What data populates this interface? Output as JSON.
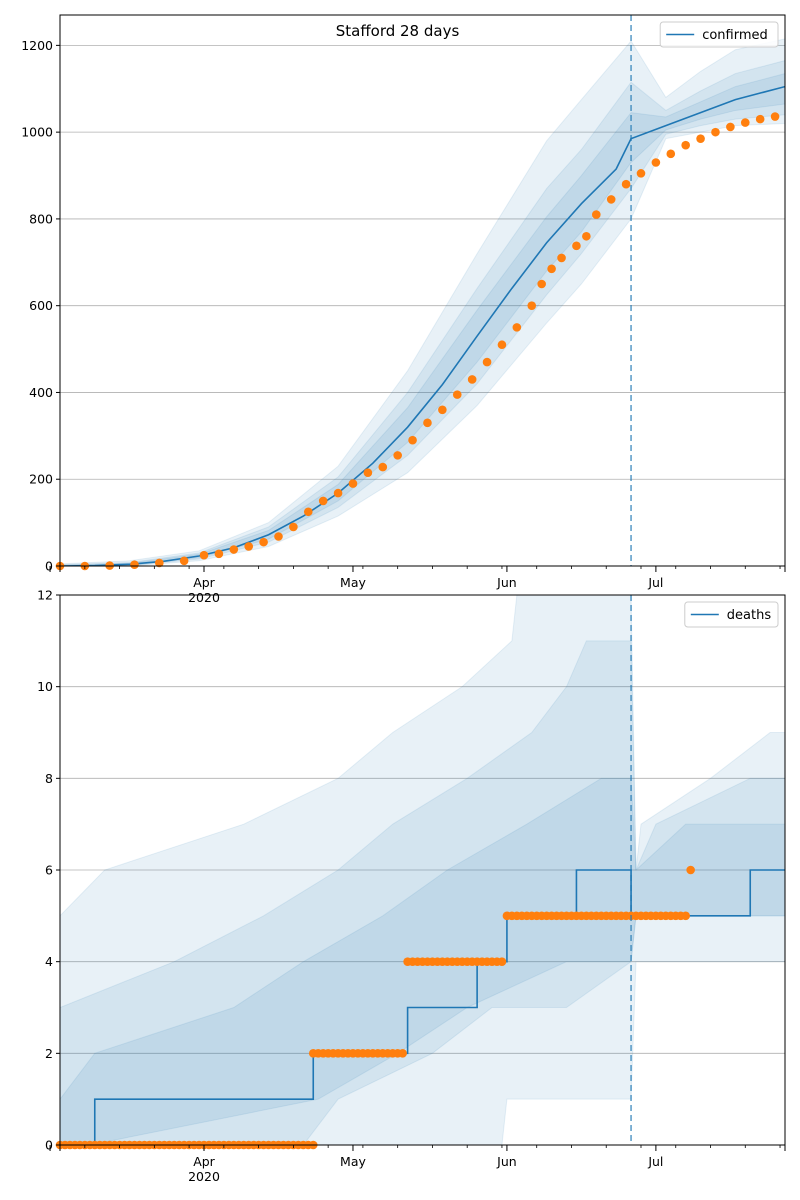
{
  "chart_data": [
    {
      "type": "line",
      "title": "Stafford 28 days",
      "x_axis": {
        "type": "date",
        "range": [
          "2020-03-03",
          "2020-07-27"
        ],
        "major_ticks": [
          {
            "date": "2020-04-01",
            "label": "Apr",
            "sublabel": "2020"
          },
          {
            "date": "2020-05-01",
            "label": "May",
            "sublabel": ""
          },
          {
            "date": "2020-06-01",
            "label": "Jun",
            "sublabel": ""
          },
          {
            "date": "2020-07-01",
            "label": "Jul",
            "sublabel": ""
          }
        ]
      },
      "y_axis": {
        "range": [
          0,
          1270
        ],
        "ticks": [
          0,
          200,
          400,
          600,
          800,
          1000,
          1200
        ]
      },
      "grid": "horizontal",
      "legend": {
        "position": "top-right",
        "entries": [
          "confirmed"
        ]
      },
      "forecast_start": "2020-06-26",
      "colors": {
        "model": "#1f77b4",
        "observed": "#ff7f0e",
        "band": "#1f77b4"
      },
      "model_median": [
        [
          "2020-03-03",
          0
        ],
        [
          "2020-03-10",
          1
        ],
        [
          "2020-03-17",
          4
        ],
        [
          "2020-03-24",
          11
        ],
        [
          "2020-03-31",
          23
        ],
        [
          "2020-04-07",
          42
        ],
        [
          "2020-04-14",
          72
        ],
        [
          "2020-04-21",
          115
        ],
        [
          "2020-04-28",
          168
        ],
        [
          "2020-05-05",
          237
        ],
        [
          "2020-05-12",
          320
        ],
        [
          "2020-05-19",
          418
        ],
        [
          "2020-05-26",
          530
        ],
        [
          "2020-06-02",
          640
        ],
        [
          "2020-06-09",
          745
        ],
        [
          "2020-06-16",
          835
        ],
        [
          "2020-06-23",
          915
        ],
        [
          "2020-06-26",
          985
        ],
        [
          "2020-07-03",
          1015
        ],
        [
          "2020-07-10",
          1045
        ],
        [
          "2020-07-17",
          1075
        ],
        [
          "2020-07-27",
          1105
        ]
      ],
      "bands": [
        {
          "upper": [
            [
              "2020-03-03",
              5
            ],
            [
              "2020-03-17",
              12
            ],
            [
              "2020-03-31",
              35
            ],
            [
              "2020-04-14",
              100
            ],
            [
              "2020-04-28",
              230
            ],
            [
              "2020-05-12",
              450
            ],
            [
              "2020-05-26",
              720
            ],
            [
              "2020-06-09",
              980
            ],
            [
              "2020-06-16",
              1075
            ],
            [
              "2020-06-26",
              1210
            ],
            [
              "2020-07-03",
              1080
            ],
            [
              "2020-07-10",
              1140
            ],
            [
              "2020-07-17",
              1190
            ],
            [
              "2020-07-27",
              1215
            ]
          ],
          "lower": [
            [
              "2020-03-03",
              0
            ],
            [
              "2020-03-17",
              0
            ],
            [
              "2020-03-31",
              12
            ],
            [
              "2020-04-14",
              45
            ],
            [
              "2020-04-28",
              115
            ],
            [
              "2020-05-12",
              215
            ],
            [
              "2020-05-26",
              370
            ],
            [
              "2020-06-09",
              560
            ],
            [
              "2020-06-16",
              650
            ],
            [
              "2020-06-26",
              800
            ],
            [
              "2020-07-03",
              985
            ],
            [
              "2020-07-10",
              1000
            ],
            [
              "2020-07-17",
              1015
            ],
            [
              "2020-07-27",
              1020
            ]
          ]
        },
        {
          "upper": [
            [
              "2020-03-03",
              3
            ],
            [
              "2020-03-17",
              8
            ],
            [
              "2020-03-31",
              30
            ],
            [
              "2020-04-14",
              90
            ],
            [
              "2020-04-28",
              205
            ],
            [
              "2020-05-12",
              400
            ],
            [
              "2020-05-26",
              640
            ],
            [
              "2020-06-09",
              870
            ],
            [
              "2020-06-16",
              960
            ],
            [
              "2020-06-26",
              1115
            ],
            [
              "2020-07-03",
              1050
            ],
            [
              "2020-07-10",
              1095
            ],
            [
              "2020-07-17",
              1135
            ],
            [
              "2020-07-27",
              1165
            ]
          ],
          "lower": [
            [
              "2020-03-03",
              0
            ],
            [
              "2020-03-17",
              1
            ],
            [
              "2020-03-31",
              16
            ],
            [
              "2020-04-14",
              55
            ],
            [
              "2020-04-28",
              135
            ],
            [
              "2020-05-12",
              255
            ],
            [
              "2020-05-26",
              420
            ],
            [
              "2020-06-09",
              625
            ],
            [
              "2020-06-16",
              720
            ],
            [
              "2020-06-26",
              870
            ],
            [
              "2020-07-03",
              995
            ],
            [
              "2020-07-10",
              1015
            ],
            [
              "2020-07-17",
              1030
            ],
            [
              "2020-07-27",
              1040
            ]
          ]
        },
        {
          "upper": [
            [
              "2020-03-03",
              2
            ],
            [
              "2020-03-17",
              6
            ],
            [
              "2020-03-31",
              27
            ],
            [
              "2020-04-14",
              82
            ],
            [
              "2020-04-28",
              188
            ],
            [
              "2020-05-12",
              365
            ],
            [
              "2020-05-26",
              590
            ],
            [
              "2020-06-09",
              805
            ],
            [
              "2020-06-16",
              900
            ],
            [
              "2020-06-26",
              1045
            ],
            [
              "2020-07-03",
              1035
            ],
            [
              "2020-07-10",
              1070
            ],
            [
              "2020-07-17",
              1105
            ],
            [
              "2020-07-27",
              1135
            ]
          ],
          "lower": [
            [
              "2020-03-03",
              0
            ],
            [
              "2020-03-17",
              2
            ],
            [
              "2020-03-31",
              19
            ],
            [
              "2020-04-14",
              62
            ],
            [
              "2020-04-28",
              150
            ],
            [
              "2020-05-12",
              285
            ],
            [
              "2020-05-26",
              470
            ],
            [
              "2020-06-09",
              680
            ],
            [
              "2020-06-16",
              770
            ],
            [
              "2020-06-26",
              930
            ],
            [
              "2020-07-03",
              1005
            ],
            [
              "2020-07-10",
              1030
            ],
            [
              "2020-07-17",
              1050
            ],
            [
              "2020-07-27",
              1065
            ]
          ]
        }
      ],
      "observed": [
        [
          "2020-03-03",
          0
        ],
        [
          "2020-03-08",
          0
        ],
        [
          "2020-03-13",
          1
        ],
        [
          "2020-03-18",
          3
        ],
        [
          "2020-03-23",
          7
        ],
        [
          "2020-03-28",
          12
        ],
        [
          "2020-04-01",
          25
        ],
        [
          "2020-04-04",
          28
        ],
        [
          "2020-04-07",
          38
        ],
        [
          "2020-04-10",
          45
        ],
        [
          "2020-04-13",
          55
        ],
        [
          "2020-04-16",
          68
        ],
        [
          "2020-04-19",
          90
        ],
        [
          "2020-04-22",
          125
        ],
        [
          "2020-04-25",
          150
        ],
        [
          "2020-04-28",
          168
        ],
        [
          "2020-05-01",
          190
        ],
        [
          "2020-05-04",
          215
        ],
        [
          "2020-05-07",
          228
        ],
        [
          "2020-05-10",
          255
        ],
        [
          "2020-05-13",
          290
        ],
        [
          "2020-05-16",
          330
        ],
        [
          "2020-05-19",
          360
        ],
        [
          "2020-05-22",
          395
        ],
        [
          "2020-05-25",
          430
        ],
        [
          "2020-05-28",
          470
        ],
        [
          "2020-05-31",
          510
        ],
        [
          "2020-06-03",
          550
        ],
        [
          "2020-06-06",
          600
        ],
        [
          "2020-06-08",
          650
        ],
        [
          "2020-06-10",
          685
        ],
        [
          "2020-06-12",
          710
        ],
        [
          "2020-06-15",
          738
        ],
        [
          "2020-06-17",
          760
        ],
        [
          "2020-06-19",
          810
        ],
        [
          "2020-06-22",
          845
        ],
        [
          "2020-06-25",
          880
        ],
        [
          "2020-06-28",
          905
        ],
        [
          "2020-07-01",
          930
        ],
        [
          "2020-07-04",
          950
        ],
        [
          "2020-07-07",
          970
        ],
        [
          "2020-07-10",
          985
        ],
        [
          "2020-07-13",
          1000
        ],
        [
          "2020-07-16",
          1012
        ],
        [
          "2020-07-19",
          1022
        ],
        [
          "2020-07-22",
          1030
        ],
        [
          "2020-07-25",
          1036
        ]
      ]
    },
    {
      "type": "line",
      "title": "",
      "x_axis": {
        "type": "date",
        "range": [
          "2020-03-03",
          "2020-07-27"
        ],
        "major_ticks": [
          {
            "date": "2020-04-01",
            "label": "Apr",
            "sublabel": "2020"
          },
          {
            "date": "2020-05-01",
            "label": "May",
            "sublabel": ""
          },
          {
            "date": "2020-06-01",
            "label": "Jun",
            "sublabel": ""
          },
          {
            "date": "2020-07-01",
            "label": "Jul",
            "sublabel": ""
          }
        ]
      },
      "y_axis": {
        "range": [
          0,
          12
        ],
        "ticks": [
          0,
          2,
          4,
          6,
          8,
          10,
          12
        ]
      },
      "grid": "horizontal",
      "legend": {
        "position": "top-right",
        "entries": [
          "deaths"
        ]
      },
      "forecast_start": "2020-06-26",
      "colors": {
        "model": "#1f77b4",
        "observed": "#ff7f0e",
        "band": "#1f77b4"
      },
      "model_median_step": [
        [
          "2020-03-03",
          0
        ],
        [
          "2020-03-10",
          1
        ],
        [
          "2020-04-23",
          2
        ],
        [
          "2020-05-12",
          3
        ],
        [
          "2020-05-26",
          4
        ],
        [
          "2020-06-01",
          5
        ],
        [
          "2020-06-15",
          6
        ],
        [
          "2020-06-26",
          5
        ],
        [
          "2020-07-20",
          6
        ],
        [
          "2020-07-27",
          6
        ]
      ],
      "bands": [
        {
          "upper": [
            [
              "2020-03-03",
              5
            ],
            [
              "2020-03-12",
              6
            ],
            [
              "2020-04-09",
              7
            ],
            [
              "2020-04-28",
              8
            ],
            [
              "2020-05-09",
              9
            ],
            [
              "2020-05-23",
              10
            ],
            [
              "2020-06-02",
              11
            ],
            [
              "2020-06-03",
              12
            ],
            [
              "2020-06-26",
              12
            ],
            [
              "2020-06-27",
              6
            ],
            [
              "2020-06-28",
              7
            ],
            [
              "2020-07-12",
              8
            ],
            [
              "2020-07-24",
              9
            ],
            [
              "2020-07-27",
              9
            ]
          ],
          "lower": [
            [
              "2020-03-03",
              0
            ],
            [
              "2020-05-31",
              0
            ],
            [
              "2020-06-01",
              1
            ],
            [
              "2020-06-26",
              1
            ],
            [
              "2020-06-27",
              4
            ],
            [
              "2020-07-27",
              4
            ]
          ]
        },
        {
          "upper": [
            [
              "2020-03-03",
              3
            ],
            [
              "2020-03-26",
              4
            ],
            [
              "2020-04-13",
              5
            ],
            [
              "2020-04-28",
              6
            ],
            [
              "2020-05-09",
              7
            ],
            [
              "2020-05-24",
              8
            ],
            [
              "2020-06-06",
              9
            ],
            [
              "2020-06-13",
              10
            ],
            [
              "2020-06-17",
              11
            ],
            [
              "2020-06-26",
              11
            ],
            [
              "2020-06-27",
              6
            ],
            [
              "2020-07-01",
              7
            ],
            [
              "2020-07-20",
              8
            ],
            [
              "2020-07-27",
              8
            ]
          ],
          "lower": [
            [
              "2020-03-03",
              0
            ],
            [
              "2020-04-21",
              0
            ],
            [
              "2020-04-28",
              1
            ],
            [
              "2020-05-17",
              2
            ],
            [
              "2020-05-29",
              3
            ],
            [
              "2020-06-13",
              3
            ],
            [
              "2020-06-26",
              4
            ],
            [
              "2020-06-27",
              5
            ],
            [
              "2020-07-27",
              5
            ]
          ]
        },
        {
          "upper": [
            [
              "2020-03-03",
              1
            ],
            [
              "2020-03-10",
              2
            ],
            [
              "2020-04-07",
              3
            ],
            [
              "2020-04-21",
              4
            ],
            [
              "2020-05-07",
              5
            ],
            [
              "2020-05-20",
              6
            ],
            [
              "2020-06-05",
              7
            ],
            [
              "2020-06-20",
              8
            ],
            [
              "2020-06-26",
              8
            ],
            [
              "2020-06-27",
              6
            ],
            [
              "2020-07-07",
              7
            ],
            [
              "2020-07-27",
              7
            ]
          ],
          "lower": [
            [
              "2020-03-03",
              0
            ],
            [
              "2020-03-09",
              0
            ],
            [
              "2020-04-24",
              1
            ],
            [
              "2020-05-10",
              2
            ],
            [
              "2020-05-24",
              3
            ],
            [
              "2020-06-13",
              4
            ],
            [
              "2020-06-26",
              4
            ],
            [
              "2020-06-27",
              5
            ],
            [
              "2020-07-27",
              5
            ]
          ]
        }
      ],
      "observed_runs": [
        {
          "start": "2020-03-03",
          "end": "2020-04-23",
          "value": 0
        },
        {
          "start": "2020-04-23",
          "end": "2020-05-11",
          "value": 2
        },
        {
          "start": "2020-05-12",
          "end": "2020-05-31",
          "value": 4
        },
        {
          "start": "2020-06-01",
          "end": "2020-07-07",
          "value": 5
        }
      ],
      "observed_points": [
        [
          "2020-07-08",
          6
        ]
      ]
    }
  ]
}
